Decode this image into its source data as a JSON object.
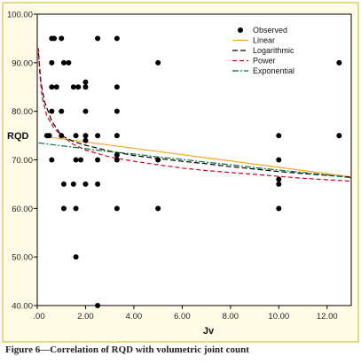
{
  "caption": "Figure 6—Correlation of RQD with volumetric joint count",
  "chart_data": {
    "type": "scatter",
    "xlabel": "Jv",
    "ylabel": "RQD",
    "xlim": [
      0,
      13
    ],
    "ylim": [
      40,
      100
    ],
    "x_ticks": [
      0,
      2,
      4,
      6,
      8,
      10,
      12
    ],
    "x_tick_labels": [
      ".00",
      "2.00",
      "4.00",
      "6.00",
      "8.00",
      "10.00",
      "12.00"
    ],
    "y_ticks": [
      40,
      50,
      60,
      70,
      80,
      90,
      100
    ],
    "y_tick_labels": [
      "40.00",
      "50.00",
      "60.00",
      "70.00",
      "80.00",
      "90.00",
      "100.00"
    ],
    "grid": false,
    "legend_position": "top-right",
    "legend": [
      {
        "label": "Observed",
        "kind": "marker",
        "color": "#000000"
      },
      {
        "label": "Linear",
        "kind": "line",
        "color": "#f5a623",
        "dash": ""
      },
      {
        "label": "Logarithmic",
        "kind": "line",
        "color": "#000000",
        "dash": "6,3"
      },
      {
        "label": "Power",
        "kind": "line",
        "color": "#d0021b",
        "dash": "5,3"
      },
      {
        "label": "Exponential",
        "kind": "line",
        "color": "#0a6b3c",
        "dash": "7,2,2,2"
      }
    ],
    "observed": [
      [
        0.4,
        75
      ],
      [
        0.5,
        75
      ],
      [
        0.6,
        80
      ],
      [
        0.6,
        85
      ],
      [
        0.6,
        90
      ],
      [
        0.6,
        95
      ],
      [
        0.7,
        95
      ],
      [
        0.8,
        85
      ],
      [
        0.6,
        70
      ],
      [
        1.0,
        75
      ],
      [
        1.0,
        80
      ],
      [
        1.0,
        95
      ],
      [
        1.1,
        90
      ],
      [
        1.1,
        65
      ],
      [
        1.1,
        60
      ],
      [
        1.3,
        90
      ],
      [
        1.5,
        85
      ],
      [
        1.5,
        65
      ],
      [
        1.6,
        75
      ],
      [
        1.6,
        60
      ],
      [
        1.7,
        85
      ],
      [
        1.6,
        70
      ],
      [
        1.6,
        50
      ],
      [
        1.8,
        70
      ],
      [
        2.0,
        86
      ],
      [
        2.0,
        85
      ],
      [
        2.0,
        80
      ],
      [
        2.0,
        75
      ],
      [
        2.0,
        74
      ],
      [
        2.0,
        65
      ],
      [
        2.5,
        95
      ],
      [
        2.5,
        75
      ],
      [
        2.5,
        70
      ],
      [
        2.5,
        65
      ],
      [
        2.5,
        40
      ],
      [
        3.3,
        95
      ],
      [
        3.3,
        85
      ],
      [
        3.3,
        80
      ],
      [
        3.3,
        75
      ],
      [
        3.3,
        71
      ],
      [
        3.3,
        70
      ],
      [
        3.3,
        60
      ],
      [
        5.0,
        90
      ],
      [
        5.0,
        70
      ],
      [
        5.0,
        60
      ],
      [
        10.0,
        75
      ],
      [
        10.0,
        70
      ],
      [
        10.0,
        66
      ],
      [
        10.0,
        65
      ],
      [
        10.0,
        60
      ],
      [
        12.5,
        90
      ],
      [
        12.5,
        75
      ]
    ],
    "fits": {
      "Linear": [
        [
          0.3,
          74.8
        ],
        [
          13,
          66.5
        ]
      ],
      "Logarithmic": [
        [
          0.05,
          92
        ],
        [
          0.15,
          86
        ],
        [
          0.3,
          82
        ],
        [
          0.6,
          78
        ],
        [
          1.0,
          75
        ],
        [
          1.5,
          73.8
        ],
        [
          2,
          73
        ],
        [
          3,
          71.8
        ],
        [
          4,
          70.9
        ],
        [
          5,
          70.3
        ],
        [
          6,
          69.7
        ],
        [
          7,
          69.2
        ],
        [
          8,
          68.6
        ],
        [
          9,
          68.1
        ],
        [
          10,
          67.6
        ],
        [
          11,
          67.2
        ],
        [
          12,
          66.8
        ],
        [
          13,
          66.4
        ]
      ],
      "Power": [
        [
          0.05,
          93
        ],
        [
          0.1,
          88
        ],
        [
          0.2,
          83
        ],
        [
          0.4,
          79
        ],
        [
          0.7,
          76.5
        ],
        [
          1.0,
          75
        ],
        [
          1.5,
          73.2
        ],
        [
          2,
          72
        ],
        [
          3,
          70.6
        ],
        [
          4,
          69.7
        ],
        [
          5,
          69
        ],
        [
          6,
          68.3
        ],
        [
          7,
          67.8
        ],
        [
          8,
          67.4
        ],
        [
          9,
          67
        ],
        [
          10,
          66.6
        ],
        [
          11,
          66.2
        ],
        [
          12,
          65.9
        ],
        [
          13,
          65.6
        ]
      ],
      "Exponential": [
        [
          0.05,
          73.5
        ],
        [
          1,
          72.9
        ],
        [
          2,
          72.3
        ],
        [
          3,
          71.7
        ],
        [
          4,
          71.2
        ],
        [
          5,
          70.6
        ],
        [
          6,
          70.1
        ],
        [
          7,
          69.5
        ],
        [
          8,
          69
        ],
        [
          9,
          68.4
        ],
        [
          10,
          67.9
        ],
        [
          11,
          67.4
        ],
        [
          12,
          66.9
        ],
        [
          13,
          66.3
        ]
      ]
    }
  }
}
